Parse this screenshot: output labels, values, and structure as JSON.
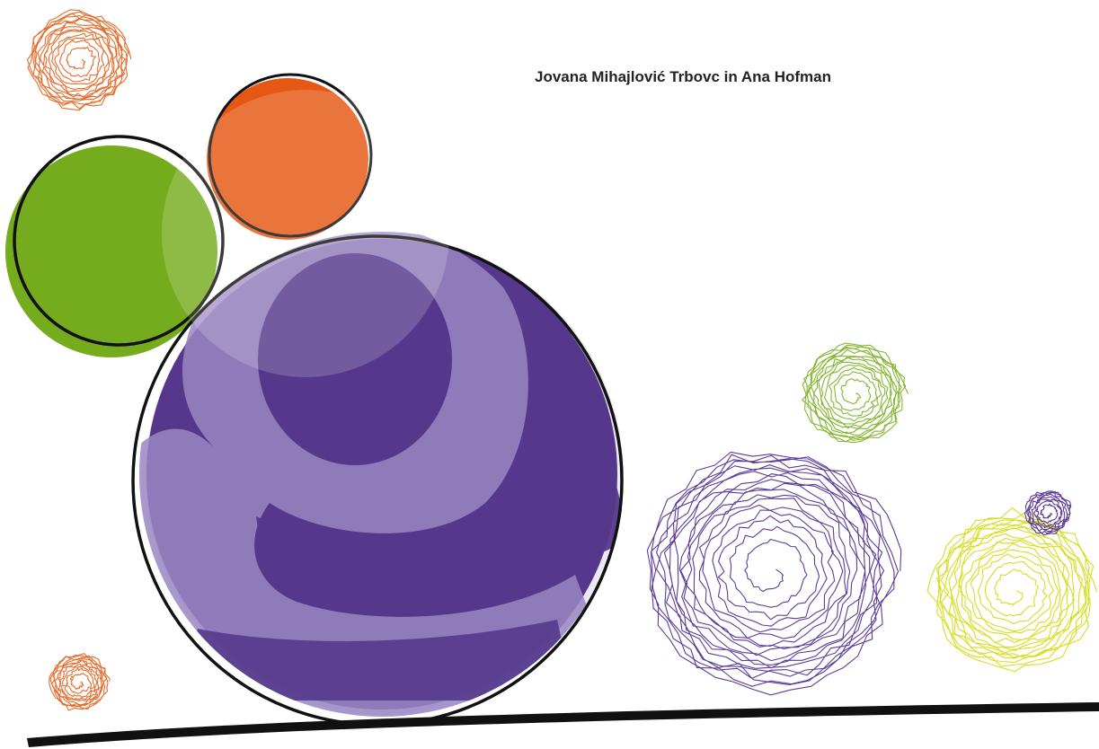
{
  "cover": {
    "authors": "Jovana Mihajlović Trbovc in Ana Hofman",
    "colors": {
      "green": "#74ac1d",
      "orange": "#e55712",
      "purple_dark": "#55388c",
      "purple_light": "#9a86c2",
      "outline": "#111111",
      "scribble_orange": "#e46d2e",
      "scribble_green": "#86b532",
      "scribble_purple": "#5c3c98",
      "scribble_yellow": "#d7dd22"
    }
  }
}
